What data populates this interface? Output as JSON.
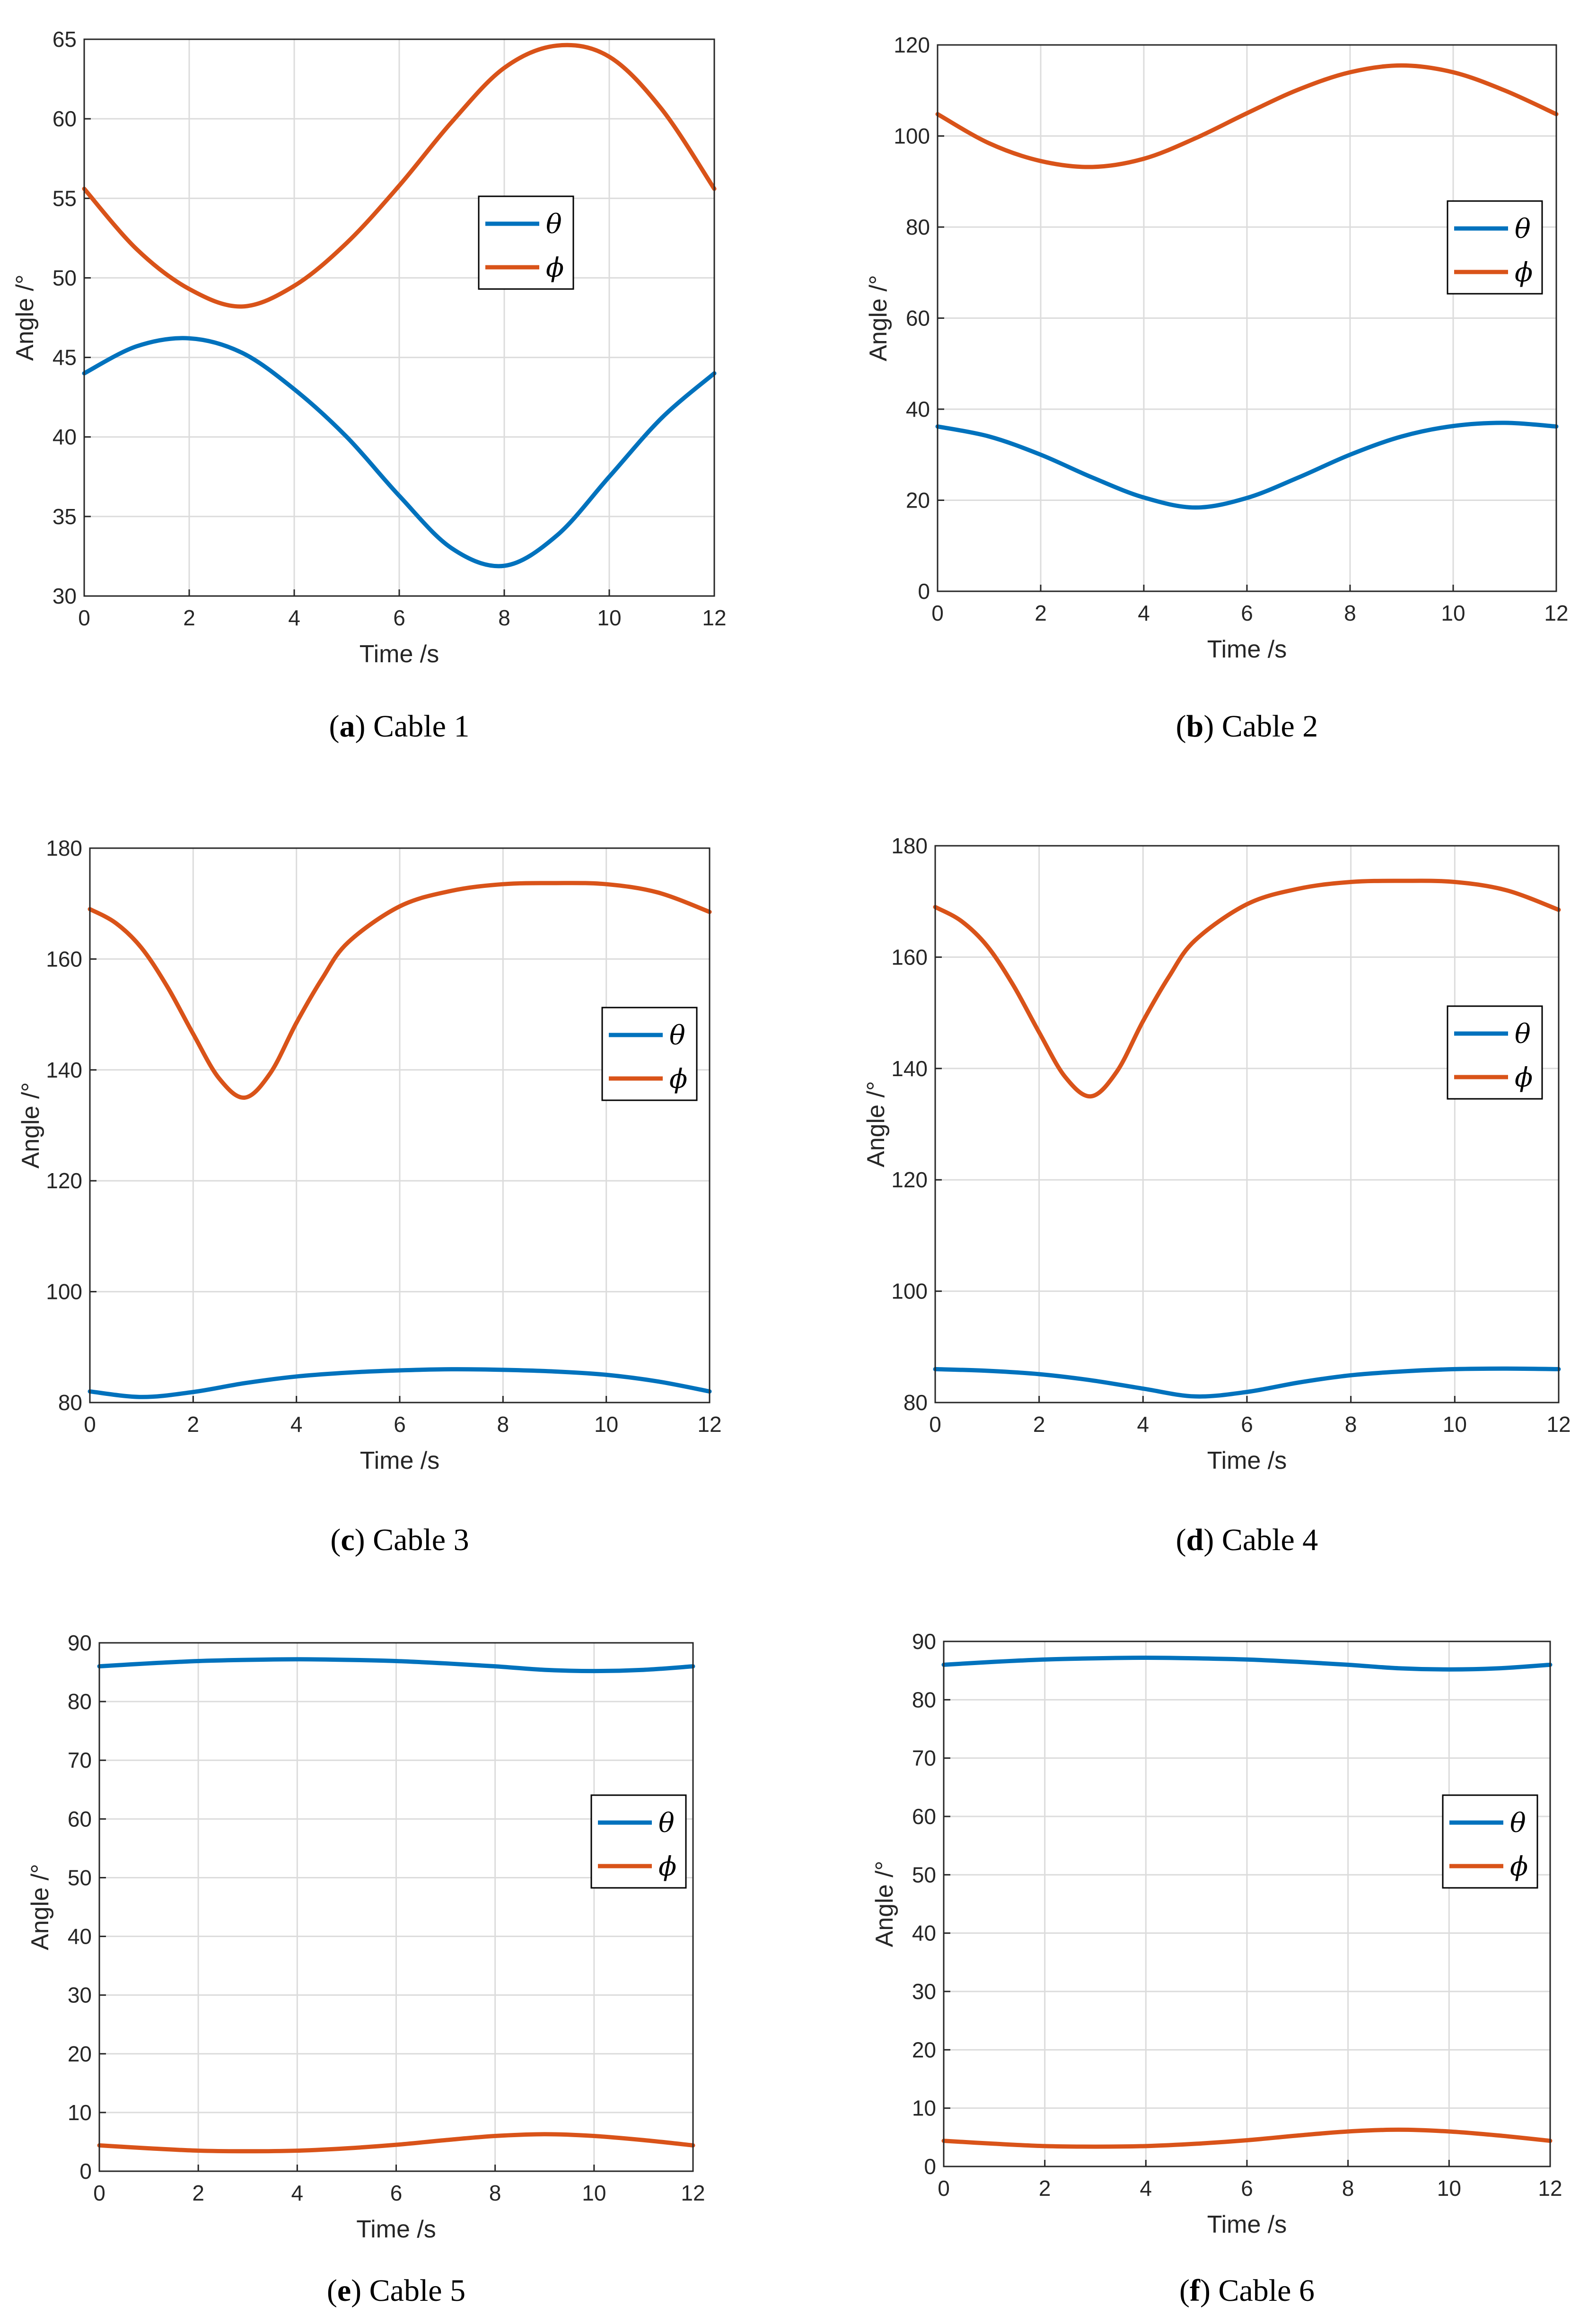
{
  "figure": {
    "axis_tick_color": "#262626",
    "grid_color": "#dcdcdc",
    "legend_box_color": "#000000"
  },
  "chart_data": [
    {
      "type": "line",
      "caption_letter": "a",
      "caption_text": "Cable 1",
      "xlabel": "Time /s",
      "ylabel": "Angle /°",
      "xlim": [
        0,
        12
      ],
      "ylim": [
        30,
        65
      ],
      "xticks": [
        0,
        2,
        4,
        6,
        8,
        10,
        12
      ],
      "yticks": [
        30,
        35,
        40,
        45,
        50,
        55,
        60,
        65
      ],
      "grid": true,
      "legend_position": "right-center",
      "series": [
        {
          "name": "θ",
          "color": "#0072BD",
          "x": [
            0,
            1,
            2,
            3,
            4,
            5,
            6,
            7,
            8,
            9,
            10,
            11,
            12
          ],
          "y": [
            44.0,
            45.7,
            46.2,
            45.3,
            43.0,
            40.0,
            36.3,
            33.0,
            31.9,
            33.8,
            37.5,
            41.2,
            44.0
          ]
        },
        {
          "name": "ϕ",
          "color": "#D95319",
          "x": [
            0,
            1,
            2,
            3,
            4,
            5,
            6,
            7,
            8,
            9,
            10,
            11,
            12
          ],
          "y": [
            55.6,
            51.8,
            49.3,
            48.2,
            49.5,
            52.2,
            55.8,
            59.8,
            63.2,
            64.6,
            63.9,
            60.6,
            55.6
          ]
        }
      ]
    },
    {
      "type": "line",
      "caption_letter": "b",
      "caption_text": "Cable 2",
      "xlabel": "Time /s",
      "ylabel": "Angle /°",
      "xlim": [
        0,
        12
      ],
      "ylim": [
        0,
        120
      ],
      "xticks": [
        0,
        2,
        4,
        6,
        8,
        10,
        12
      ],
      "yticks": [
        0,
        20,
        40,
        60,
        80,
        100,
        120
      ],
      "grid": true,
      "legend_position": "top-right",
      "series": [
        {
          "name": "θ",
          "color": "#0072BD",
          "x": [
            0,
            1,
            2,
            3,
            4,
            5,
            6,
            7,
            8,
            9,
            10,
            11,
            12
          ],
          "y": [
            36.2,
            34.0,
            30.0,
            25.0,
            20.6,
            18.4,
            20.5,
            25.0,
            30.0,
            34.0,
            36.3,
            37.0,
            36.2
          ]
        },
        {
          "name": "ϕ",
          "color": "#D95319",
          "x": [
            0,
            1,
            2,
            3,
            4,
            5,
            6,
            7,
            8,
            9,
            10,
            11,
            12
          ],
          "y": [
            104.8,
            98.4,
            94.5,
            93.2,
            95.0,
            99.5,
            105.0,
            110.2,
            114.0,
            115.5,
            114.0,
            110.0,
            104.8
          ]
        }
      ]
    },
    {
      "type": "line",
      "caption_letter": "c",
      "caption_text": "Cable 3",
      "xlabel": "Time /s",
      "ylabel": "Angle /°",
      "xlim": [
        0,
        12
      ],
      "ylim": [
        80,
        180
      ],
      "xticks": [
        0,
        2,
        4,
        6,
        8,
        10,
        12
      ],
      "yticks": [
        80,
        100,
        120,
        140,
        160,
        180
      ],
      "grid": true,
      "legend_position": "right-center",
      "series": [
        {
          "name": "θ",
          "color": "#0072BD",
          "x": [
            0,
            1,
            2,
            3,
            4,
            5,
            6,
            7,
            8,
            9,
            10,
            11,
            12
          ],
          "y": [
            82.0,
            81.0,
            81.9,
            83.5,
            84.7,
            85.4,
            85.8,
            86.0,
            85.9,
            85.6,
            85.0,
            83.8,
            82.0
          ]
        },
        {
          "name": "ϕ",
          "color": "#D95319",
          "x": [
            0,
            0.5,
            1,
            1.5,
            2,
            2.5,
            3,
            3.5,
            4,
            4.5,
            5,
            6,
            7,
            8,
            9,
            10,
            11,
            12
          ],
          "y": [
            169.0,
            166.5,
            162.0,
            155.0,
            146.5,
            138.5,
            135.0,
            139.5,
            148.5,
            156.5,
            163.0,
            169.5,
            172.3,
            173.5,
            173.7,
            173.5,
            172.0,
            168.5
          ]
        }
      ]
    },
    {
      "type": "line",
      "caption_letter": "d",
      "caption_text": "Cable 4",
      "xlabel": "Time /s",
      "ylabel": "Angle /°",
      "xlim": [
        0,
        12
      ],
      "ylim": [
        80,
        180
      ],
      "xticks": [
        0,
        2,
        4,
        6,
        8,
        10,
        12
      ],
      "yticks": [
        80,
        100,
        120,
        140,
        160,
        180
      ],
      "grid": true,
      "legend_position": "right-center",
      "series": [
        {
          "name": "θ",
          "color": "#0072BD",
          "x": [
            0,
            1,
            2,
            3,
            4,
            5,
            6,
            7,
            8,
            9,
            10,
            11,
            12
          ],
          "y": [
            86.0,
            85.7,
            85.1,
            84.0,
            82.5,
            81.1,
            81.9,
            83.6,
            84.9,
            85.6,
            86.0,
            86.1,
            86.0
          ]
        },
        {
          "name": "ϕ",
          "color": "#D95319",
          "x": [
            0,
            0.5,
            1,
            1.5,
            2,
            2.5,
            3,
            3.5,
            4,
            4.5,
            5,
            6,
            7,
            8,
            9,
            10,
            11,
            12
          ],
          "y": [
            169.0,
            166.5,
            162.0,
            155.0,
            146.5,
            138.5,
            135.0,
            139.5,
            148.5,
            156.5,
            163.0,
            169.5,
            172.3,
            173.5,
            173.7,
            173.5,
            172.0,
            168.5
          ]
        }
      ]
    },
    {
      "type": "line",
      "caption_letter": "e",
      "caption_text": "Cable 5",
      "xlabel": "Time /s",
      "ylabel": "Angle /°",
      "xlim": [
        0,
        12
      ],
      "ylim": [
        0,
        90
      ],
      "xticks": [
        0,
        2,
        4,
        6,
        8,
        10,
        12
      ],
      "yticks": [
        0,
        10,
        20,
        30,
        40,
        50,
        60,
        70,
        80,
        90
      ],
      "grid": true,
      "legend_position": "right-center",
      "series": [
        {
          "name": "θ",
          "color": "#0072BD",
          "x": [
            0,
            1,
            2,
            3,
            4,
            5,
            6,
            7,
            8,
            9,
            10,
            11,
            12
          ],
          "y": [
            86.0,
            86.5,
            86.9,
            87.1,
            87.2,
            87.1,
            86.9,
            86.5,
            86.0,
            85.4,
            85.2,
            85.4,
            86.0
          ]
        },
        {
          "name": "ϕ",
          "color": "#D95319",
          "x": [
            0,
            1,
            2,
            3,
            4,
            5,
            6,
            7,
            8,
            9,
            10,
            11,
            12
          ],
          "y": [
            4.4,
            3.9,
            3.5,
            3.4,
            3.5,
            3.9,
            4.5,
            5.3,
            6.0,
            6.3,
            6.0,
            5.3,
            4.4
          ]
        }
      ]
    },
    {
      "type": "line",
      "caption_letter": "f",
      "caption_text": "Cable 6",
      "xlabel": "Time /s",
      "ylabel": "Angle /°",
      "xlim": [
        0,
        12
      ],
      "ylim": [
        0,
        90
      ],
      "xticks": [
        0,
        2,
        4,
        6,
        8,
        10,
        12
      ],
      "yticks": [
        0,
        10,
        20,
        30,
        40,
        50,
        60,
        70,
        80,
        90
      ],
      "grid": true,
      "legend_position": "right-center",
      "series": [
        {
          "name": "θ",
          "color": "#0072BD",
          "x": [
            0,
            1,
            2,
            3,
            4,
            5,
            6,
            7,
            8,
            9,
            10,
            11,
            12
          ],
          "y": [
            86.0,
            86.5,
            86.9,
            87.1,
            87.2,
            87.1,
            86.9,
            86.5,
            86.0,
            85.4,
            85.2,
            85.4,
            86.0
          ]
        },
        {
          "name": "ϕ",
          "color": "#D95319",
          "x": [
            0,
            1,
            2,
            3,
            4,
            5,
            6,
            7,
            8,
            9,
            10,
            11,
            12
          ],
          "y": [
            4.4,
            3.9,
            3.5,
            3.4,
            3.5,
            3.9,
            4.5,
            5.3,
            6.0,
            6.3,
            6.0,
            5.3,
            4.4
          ]
        }
      ]
    }
  ]
}
